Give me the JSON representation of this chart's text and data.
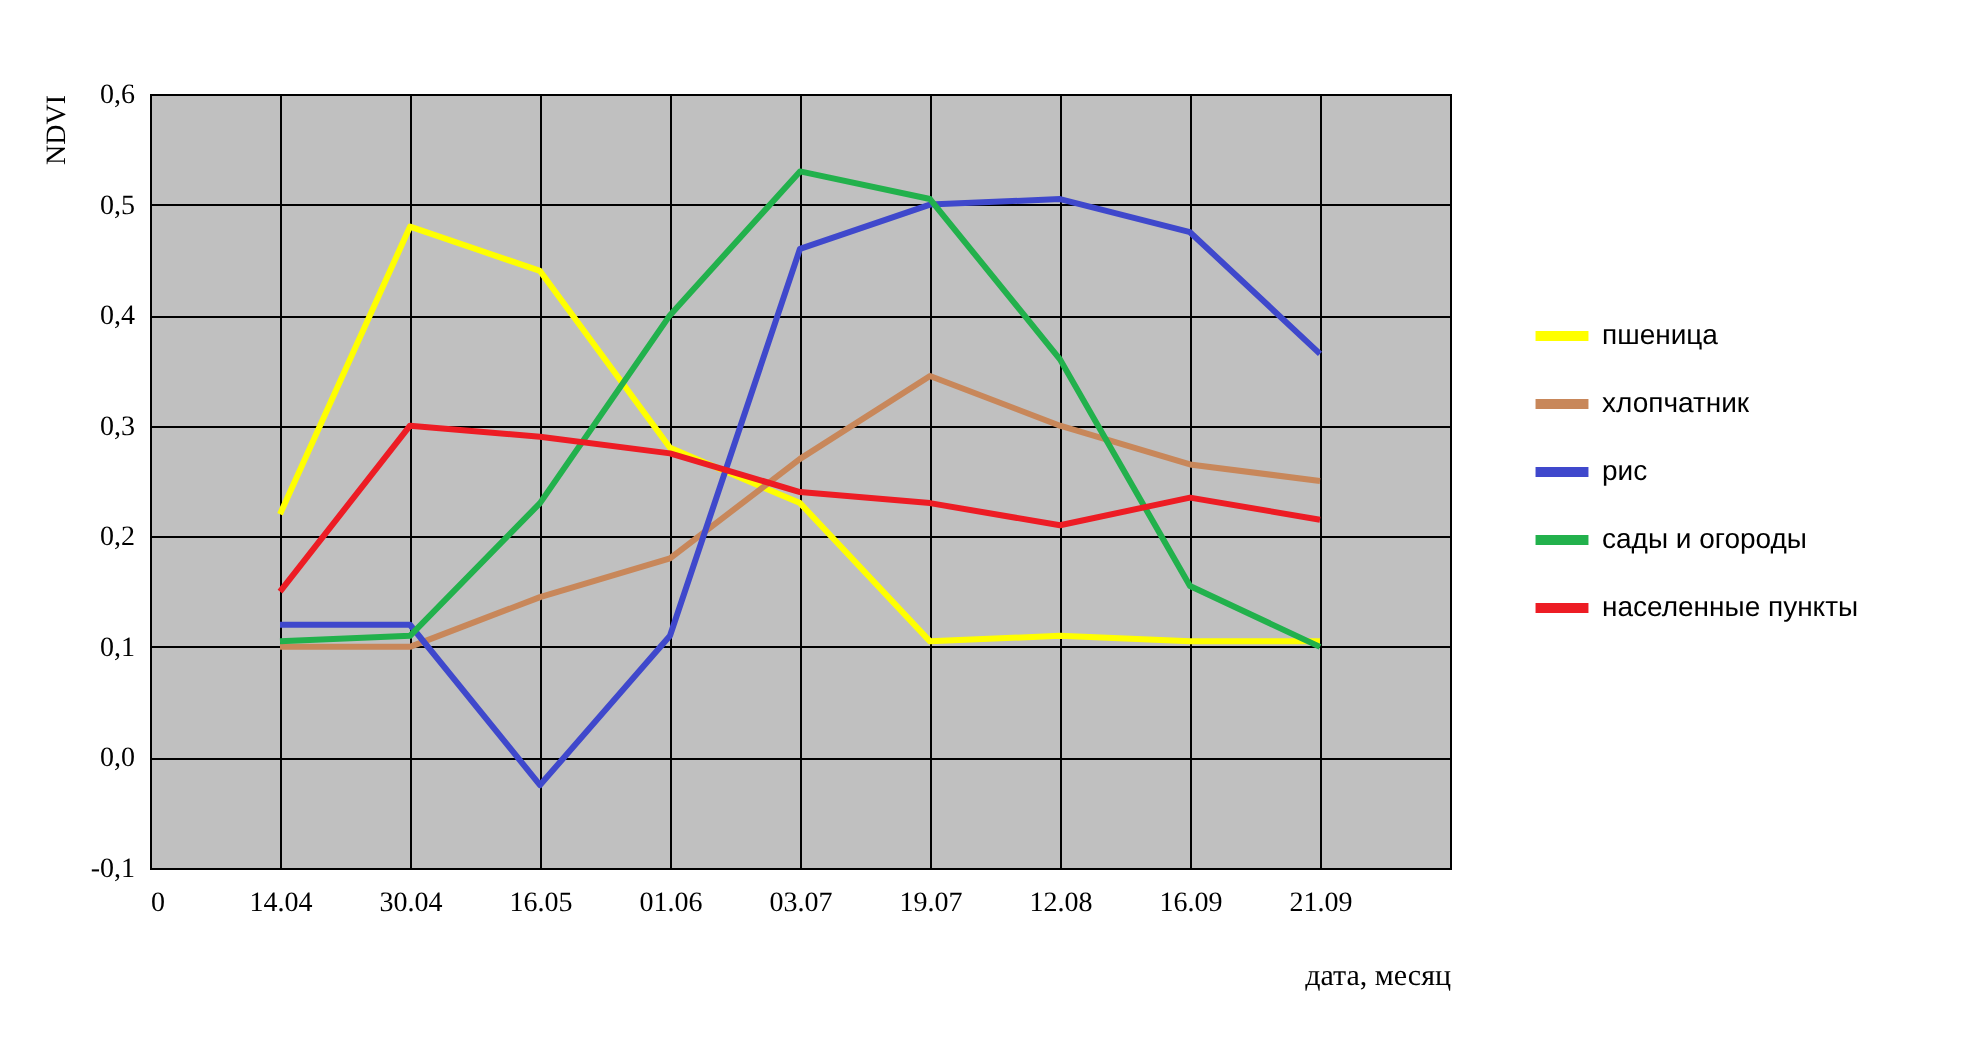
{
  "chart_data": {
    "type": "line",
    "xlabel": "дата, месяц",
    "ylabel": "NDVI",
    "categories": [
      "0",
      "14.04",
      "30.04",
      "16.05",
      "01.06",
      "03.07",
      "19.07",
      "12.08",
      "16.09",
      "21.09",
      null
    ],
    "series": [
      {
        "name": "пшеница",
        "color": "#ffff00",
        "values": [
          null,
          0.22,
          0.48,
          0.44,
          0.28,
          0.23,
          0.105,
          0.11,
          0.105,
          0.105,
          null
        ]
      },
      {
        "name": "хлопчатник",
        "color": "#c8875a",
        "values": [
          null,
          0.1,
          0.1,
          0.145,
          0.18,
          0.27,
          0.345,
          0.3,
          0.265,
          0.25,
          null
        ]
      },
      {
        "name": "рис",
        "color": "#3f48cc",
        "values": [
          null,
          0.12,
          0.12,
          -0.025,
          0.11,
          0.46,
          0.5,
          0.505,
          0.475,
          0.365,
          null
        ]
      },
      {
        "name": "сады и огороды",
        "color": "#22b14c",
        "values": [
          null,
          0.105,
          0.11,
          0.23,
          0.4,
          0.53,
          0.505,
          0.36,
          0.155,
          0.1,
          null
        ]
      },
      {
        "name": "населенные пункты",
        "color": "#ed1c24",
        "values": [
          null,
          0.15,
          0.3,
          0.29,
          0.275,
          0.24,
          0.23,
          0.21,
          0.235,
          0.215,
          null
        ]
      }
    ],
    "ylim": [
      -0.1,
      0.6
    ],
    "yticks": [
      {
        "value": -0.1,
        "label": "-0,1"
      },
      {
        "value": 0,
        "label": "0,0"
      },
      {
        "value": 0.1,
        "label": "0,1"
      },
      {
        "value": 0.2,
        "label": "0,2"
      },
      {
        "value": 0.3,
        "label": "0,3"
      },
      {
        "value": 0.4,
        "label": "0,4"
      },
      {
        "value": 0.5,
        "label": "0,5"
      },
      {
        "value": 0.6,
        "label": "0,6"
      }
    ],
    "grid": true,
    "legend": "right",
    "line_style": "solid",
    "marker": "none"
  }
}
